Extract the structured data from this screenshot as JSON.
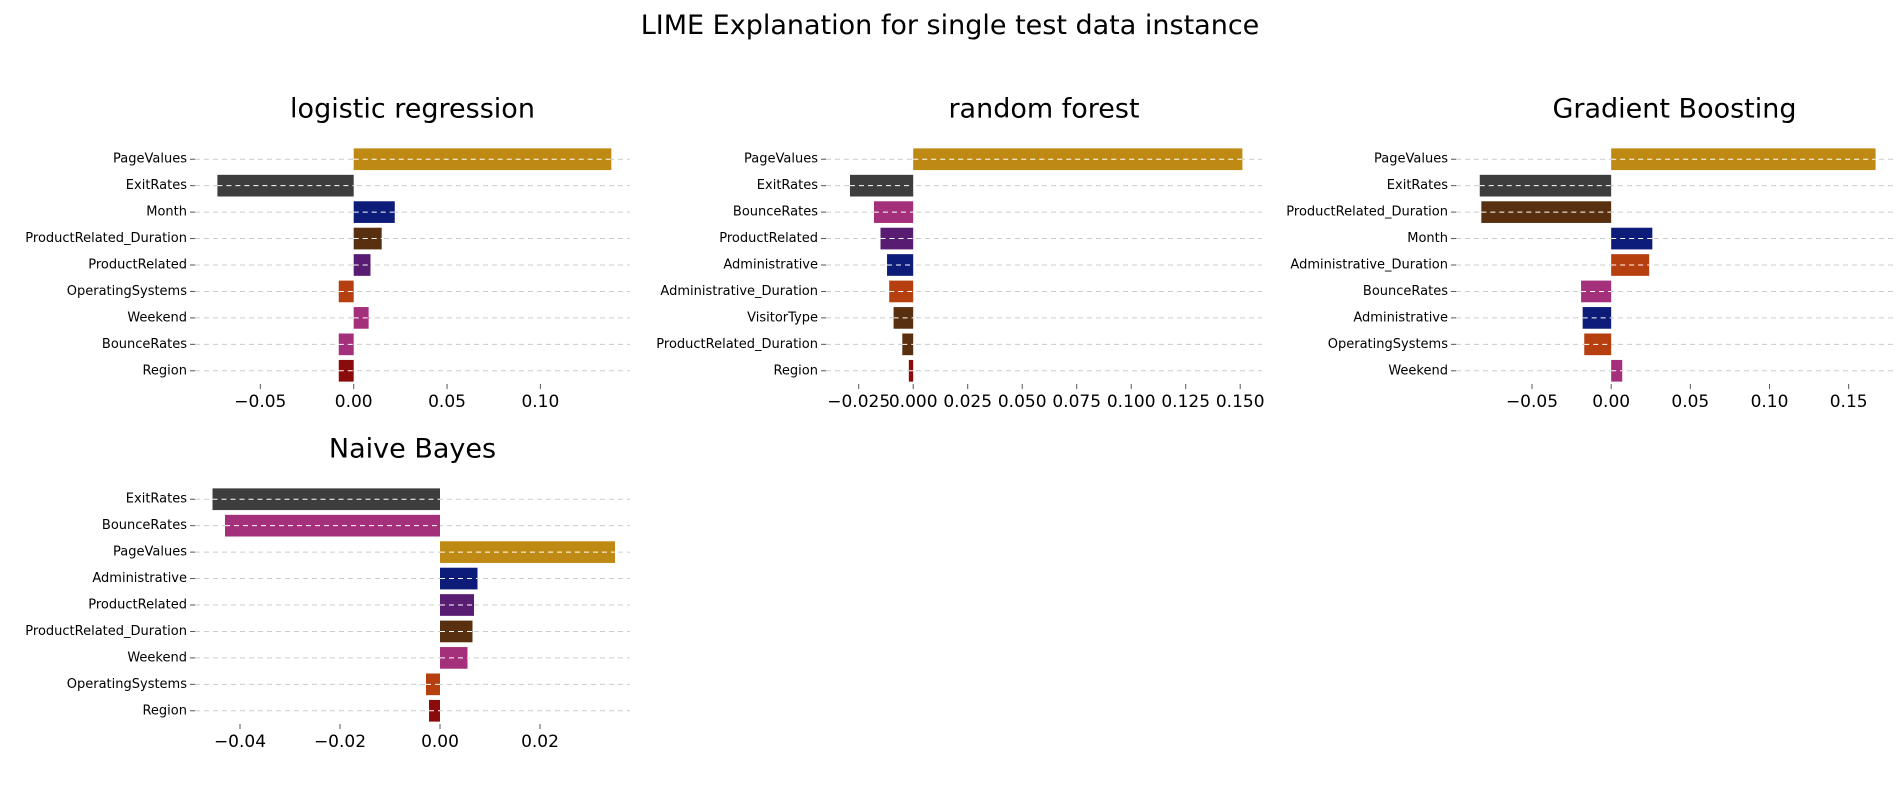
{
  "figure": {
    "suptitle": "LIME Explanation for single test data instance"
  },
  "colors": {
    "PageValues": "#BF8A14",
    "ExitRates": "#3D3D3D",
    "Month": "#0E1C79",
    "ProductRelated_Duration": "#58300F",
    "ProductRelated": "#581C72",
    "OperatingSystems": "#B53F0E",
    "Weekend": "#A4307B",
    "BounceRates": "#A4307B",
    "Region": "#8B0A0A",
    "Administrative": "#0E1C79",
    "Administrative_Duration": "#B53F0E",
    "VisitorType": "#58300F",
    "grid": "#cccccc",
    "bar_line": "#ffffff"
  },
  "chart_data": [
    {
      "type": "bar",
      "orientation": "horizontal",
      "title": "logistic regression",
      "categories": [
        "PageValues",
        "ExitRates",
        "Month",
        "ProductRelated_Duration",
        "ProductRelated",
        "OperatingSystems",
        "Weekend",
        "BounceRates",
        "Region"
      ],
      "values": [
        0.138,
        -0.073,
        0.022,
        0.015,
        0.009,
        -0.008,
        0.008,
        -0.008,
        -0.008
      ],
      "xlim": [
        -0.085,
        0.148
      ],
      "xticks": [
        -0.05,
        0.0,
        0.05,
        0.1
      ],
      "xtick_labels": [
        "−0.05",
        "0.00",
        "0.05",
        "0.10"
      ],
      "xlabel": "",
      "ylabel": "",
      "grid": "horizontal dashed"
    },
    {
      "type": "bar",
      "orientation": "horizontal",
      "title": "random forest",
      "categories": [
        "PageValues",
        "ExitRates",
        "BounceRates",
        "ProductRelated",
        "Administrative",
        "Administrative_Duration",
        "VisitorType",
        "ProductRelated_Duration",
        "Region"
      ],
      "values": [
        0.151,
        -0.029,
        -0.018,
        -0.015,
        -0.012,
        -0.011,
        -0.009,
        -0.005,
        -0.002
      ],
      "xlim": [
        -0.04,
        0.16
      ],
      "xticks": [
        -0.025,
        0.0,
        0.025,
        0.05,
        0.075,
        0.1,
        0.125,
        0.15
      ],
      "xtick_labels": [
        "−0.025",
        "0.000",
        "0.025",
        "0.050",
        "0.075",
        "0.100",
        "0.125",
        "0.150"
      ],
      "xlabel": "",
      "ylabel": "",
      "grid": "horizontal dashed"
    },
    {
      "type": "bar",
      "orientation": "horizontal",
      "title": "Gradient Boosting",
      "categories": [
        "PageValues",
        "ExitRates",
        "ProductRelated_Duration",
        "Month",
        "Administrative_Duration",
        "BounceRates",
        "Administrative",
        "OperatingSystems",
        "Weekend"
      ],
      "values": [
        0.167,
        -0.083,
        -0.082,
        0.026,
        0.024,
        -0.019,
        -0.018,
        -0.017,
        0.007
      ],
      "xlim": [
        -0.098,
        0.178
      ],
      "xticks": [
        -0.05,
        0.0,
        0.05,
        0.1,
        0.15
      ],
      "xtick_labels": [
        "−0.05",
        "0.00",
        "0.05",
        "0.10",
        "0.15"
      ],
      "xlabel": "",
      "ylabel": "",
      "grid": "horizontal dashed"
    },
    {
      "type": "bar",
      "orientation": "horizontal",
      "title": "Naive Bayes",
      "categories": [
        "ExitRates",
        "BounceRates",
        "PageValues",
        "Administrative",
        "ProductRelated",
        "ProductRelated_Duration",
        "Weekend",
        "OperatingSystems",
        "Region"
      ],
      "values": [
        -0.0455,
        -0.043,
        0.035,
        0.0075,
        0.0068,
        0.0065,
        0.0055,
        -0.0028,
        -0.0022
      ],
      "xlim": [
        -0.049,
        0.038
      ],
      "xticks": [
        -0.04,
        -0.02,
        0.0,
        0.02
      ],
      "xtick_labels": [
        "−0.04",
        "−0.02",
        "0.00",
        "0.02"
      ],
      "xlabel": "",
      "ylabel": "",
      "grid": "horizontal dashed"
    }
  ]
}
